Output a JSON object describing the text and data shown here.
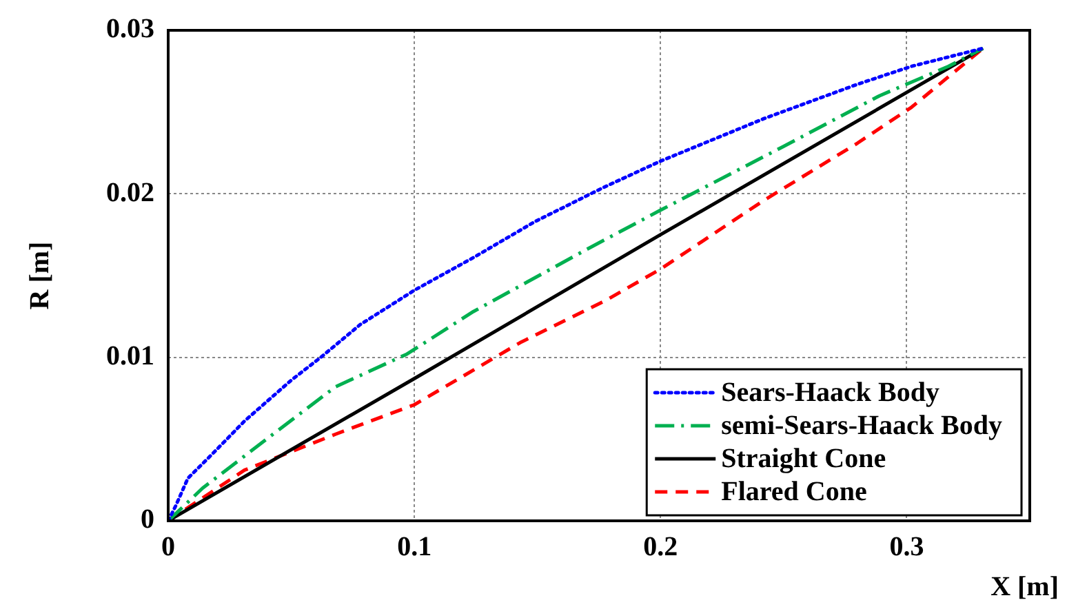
{
  "chart_data": {
    "type": "line",
    "xlabel": "X [m]",
    "ylabel": "R [m]",
    "xlim": [
      0,
      0.35
    ],
    "xticks": [
      0,
      0.1,
      0.2,
      0.3
    ],
    "ylim": [
      0,
      0.03
    ],
    "yticks": [
      0,
      0.01,
      0.02,
      0.03
    ],
    "grid": true,
    "legend": "bottom right",
    "marker": "none",
    "series": [
      {
        "name": "Sears-Haack Body",
        "color": "#0000ff",
        "line_style": "dotted",
        "x": [
          0,
          0.003,
          0.008,
          0.018,
          0.031,
          0.05,
          0.062,
          0.078,
          0.1,
          0.124,
          0.149,
          0.177,
          0.2,
          0.242,
          0.28,
          0.302,
          0.331
        ],
        "values": [
          0,
          0.0009,
          0.0026,
          0.0041,
          0.0061,
          0.0086,
          0.01,
          0.012,
          0.0141,
          0.0161,
          0.0183,
          0.0204,
          0.022,
          0.0246,
          0.0267,
          0.0278,
          0.0289
        ]
      },
      {
        "name": "semi-Sears-Haack Body",
        "color": "#00b050",
        "line_style": "dashdot",
        "x": [
          0,
          0.014,
          0.04,
          0.068,
          0.097,
          0.124,
          0.17,
          0.2,
          0.25,
          0.289,
          0.317,
          0.331
        ],
        "values": [
          0,
          0.002,
          0.005,
          0.0082,
          0.0102,
          0.0128,
          0.0166,
          0.019,
          0.0229,
          0.026,
          0.0278,
          0.0289
        ]
      },
      {
        "name": "Straight Cone",
        "color": "#000000",
        "line_style": "solid",
        "x": [
          0,
          0.1,
          0.2,
          0.3,
          0.331
        ],
        "values": [
          0,
          0.0087,
          0.0175,
          0.0262,
          0.0289
        ]
      },
      {
        "name": "Flared Cone",
        "color": "#ff0000",
        "line_style": "dashed",
        "x": [
          0,
          0.031,
          0.068,
          0.1,
          0.143,
          0.178,
          0.2,
          0.242,
          0.28,
          0.302,
          0.331
        ],
        "values": [
          0,
          0.0031,
          0.0053,
          0.0071,
          0.0109,
          0.0135,
          0.0154,
          0.0196,
          0.0231,
          0.0253,
          0.0289
        ]
      }
    ]
  }
}
